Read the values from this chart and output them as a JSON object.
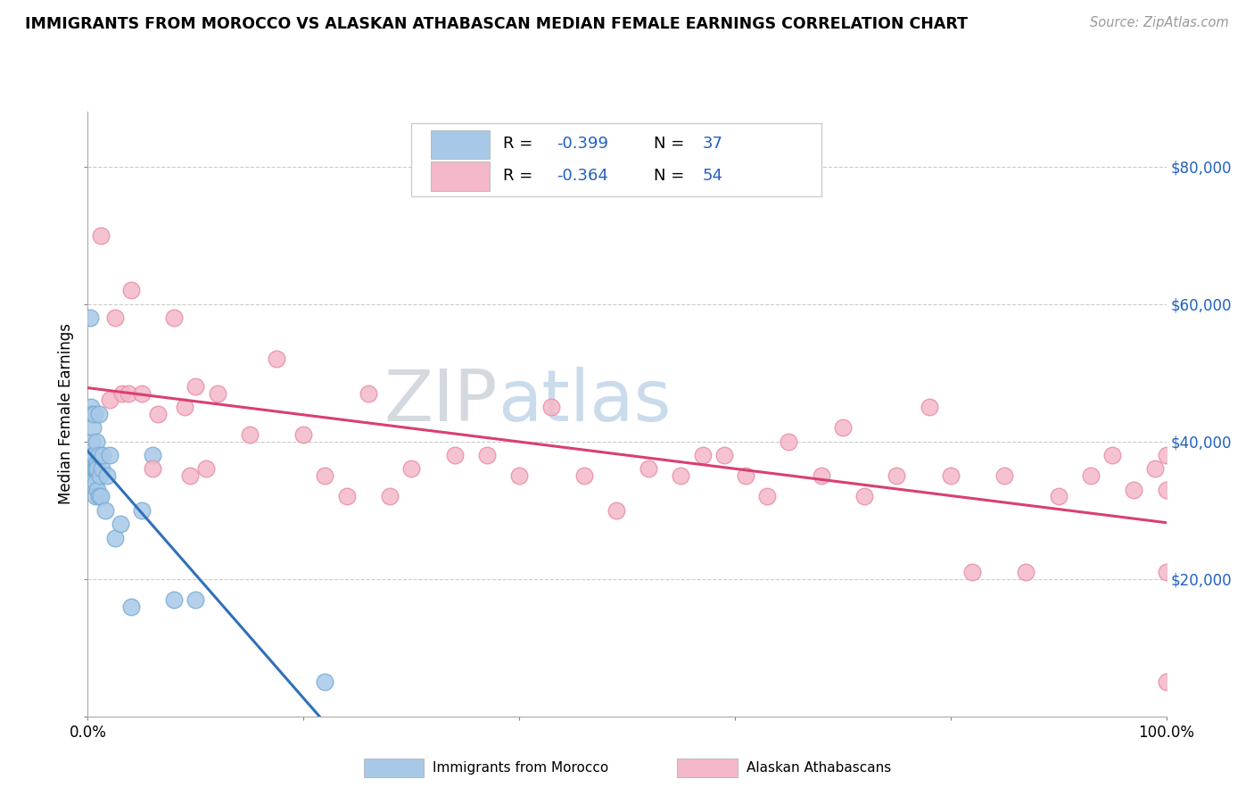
{
  "title": "IMMIGRANTS FROM MOROCCO VS ALASKAN ATHABASCAN MEDIAN FEMALE EARNINGS CORRELATION CHART",
  "source": "Source: ZipAtlas.com",
  "ylabel": "Median Female Earnings",
  "legend_labels": [
    "Immigrants from Morocco",
    "Alaskan Athabascans"
  ],
  "legend_r": [
    -0.399,
    -0.364
  ],
  "legend_n": [
    37,
    54
  ],
  "watermark_zip": "ZIP",
  "watermark_atlas": "atlas",
  "blue_color": "#a8c8e8",
  "blue_edge_color": "#7aaed4",
  "pink_color": "#f4b8c8",
  "pink_edge_color": "#e890a8",
  "blue_line_color": "#3070b8",
  "pink_line_color": "#d84070",
  "dashed_line_color": "#b0b8cc",
  "grid_color": "#cccccc",
  "ylim": [
    0,
    88000
  ],
  "xlim": [
    0.0,
    1.0
  ],
  "blue_points_x": [
    0.002,
    0.003,
    0.004,
    0.004,
    0.005,
    0.005,
    0.005,
    0.005,
    0.006,
    0.006,
    0.006,
    0.007,
    0.007,
    0.007,
    0.008,
    0.008,
    0.009,
    0.009,
    0.009,
    0.01,
    0.01,
    0.01,
    0.011,
    0.012,
    0.013,
    0.014,
    0.016,
    0.018,
    0.02,
    0.025,
    0.03,
    0.04,
    0.05,
    0.06,
    0.08,
    0.1,
    0.22
  ],
  "blue_points_y": [
    58000,
    45000,
    44000,
    40000,
    42000,
    38000,
    36000,
    34000,
    44000,
    38000,
    36000,
    36000,
    34000,
    32000,
    40000,
    36000,
    37000,
    36000,
    33000,
    44000,
    38000,
    32000,
    35000,
    32000,
    36000,
    38000,
    30000,
    35000,
    38000,
    26000,
    28000,
    16000,
    30000,
    38000,
    17000,
    17000,
    5000
  ],
  "pink_points_x": [
    0.012,
    0.02,
    0.025,
    0.032,
    0.038,
    0.04,
    0.05,
    0.06,
    0.065,
    0.08,
    0.09,
    0.095,
    0.1,
    0.11,
    0.12,
    0.15,
    0.175,
    0.2,
    0.22,
    0.24,
    0.26,
    0.28,
    0.3,
    0.34,
    0.37,
    0.4,
    0.43,
    0.46,
    0.49,
    0.52,
    0.55,
    0.57,
    0.59,
    0.61,
    0.63,
    0.65,
    0.68,
    0.7,
    0.72,
    0.75,
    0.78,
    0.8,
    0.82,
    0.85,
    0.87,
    0.9,
    0.93,
    0.95,
    0.97,
    0.99,
    1.0,
    1.0,
    1.0,
    1.0
  ],
  "pink_points_y": [
    70000,
    46000,
    58000,
    47000,
    47000,
    62000,
    47000,
    36000,
    44000,
    58000,
    45000,
    35000,
    48000,
    36000,
    47000,
    41000,
    52000,
    41000,
    35000,
    32000,
    47000,
    32000,
    36000,
    38000,
    38000,
    35000,
    45000,
    35000,
    30000,
    36000,
    35000,
    38000,
    38000,
    35000,
    32000,
    40000,
    35000,
    42000,
    32000,
    35000,
    45000,
    35000,
    21000,
    35000,
    21000,
    32000,
    35000,
    38000,
    33000,
    36000,
    33000,
    38000,
    21000,
    5000
  ]
}
